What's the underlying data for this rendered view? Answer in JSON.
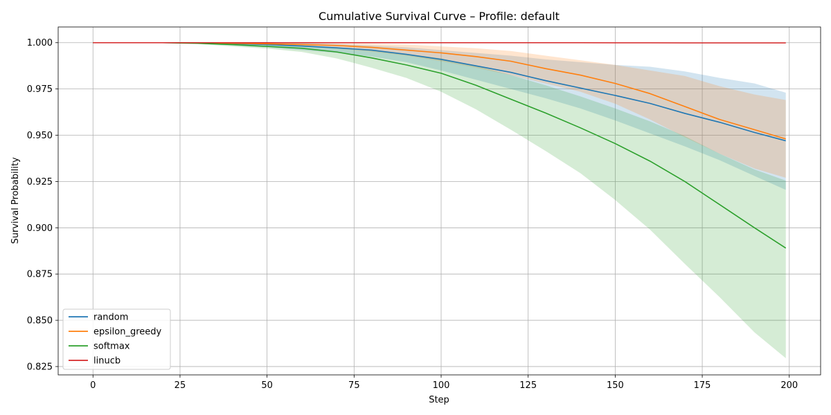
{
  "chart_data": {
    "type": "line",
    "title": "Cumulative Survival Curve – Profile: default",
    "xlabel": "Step",
    "ylabel": "Survival Probability",
    "xlim": [
      -10,
      209
    ],
    "ylim": [
      0.8205,
      1.0085
    ],
    "xticks": [
      0,
      25,
      50,
      75,
      100,
      125,
      150,
      175,
      200
    ],
    "yticks": [
      0.825,
      0.85,
      0.875,
      0.9,
      0.925,
      0.95,
      0.975,
      1.0
    ],
    "ytick_labels": [
      "0.825",
      "0.850",
      "0.875",
      "0.900",
      "0.925",
      "0.950",
      "0.975",
      "1.000"
    ],
    "grid": true,
    "legend_position": "lower-left",
    "x": [
      0,
      10,
      20,
      30,
      40,
      50,
      60,
      70,
      80,
      90,
      100,
      110,
      120,
      130,
      140,
      150,
      160,
      170,
      180,
      190,
      199
    ],
    "series": [
      {
        "name": "random",
        "color": "#1f77b4",
        "values": [
          1.0,
          1.0,
          1.0,
          0.9999,
          0.9995,
          0.999,
          0.9982,
          0.9972,
          0.996,
          0.9937,
          0.991,
          0.9875,
          0.984,
          0.9795,
          0.9755,
          0.9715,
          0.9672,
          0.9618,
          0.957,
          0.9515,
          0.947
        ],
        "upper": [
          1.0,
          1.0,
          1.0,
          1.0,
          1.0,
          1.0,
          0.9998,
          0.9993,
          0.9985,
          0.9975,
          0.996,
          0.9945,
          0.993,
          0.991,
          0.9895,
          0.988,
          0.987,
          0.9845,
          0.981,
          0.978,
          0.973
        ],
        "lower": [
          1.0,
          1.0,
          1.0,
          0.9995,
          0.9985,
          0.9975,
          0.996,
          0.9945,
          0.9925,
          0.9895,
          0.985,
          0.98,
          0.975,
          0.97,
          0.9645,
          0.958,
          0.951,
          0.944,
          0.9365,
          0.928,
          0.9205
        ]
      },
      {
        "name": "epsilon_greedy",
        "color": "#ff7f0e",
        "values": [
          1.0,
          1.0,
          1.0,
          1.0,
          0.9997,
          0.9994,
          0.999,
          0.9985,
          0.9975,
          0.996,
          0.9945,
          0.9925,
          0.99,
          0.986,
          0.9825,
          0.978,
          0.9725,
          0.9655,
          0.9585,
          0.953,
          0.948
        ],
        "upper": [
          1.0,
          1.0,
          1.0,
          1.0,
          1.0,
          1.0,
          0.9998,
          0.9995,
          0.9993,
          0.999,
          0.998,
          0.997,
          0.9955,
          0.993,
          0.9905,
          0.988,
          0.985,
          0.982,
          0.9765,
          0.972,
          0.969
        ],
        "lower": [
          1.0,
          1.0,
          1.0,
          0.9998,
          0.9993,
          0.9988,
          0.998,
          0.9968,
          0.9952,
          0.993,
          0.99,
          0.9865,
          0.9825,
          0.978,
          0.9735,
          0.967,
          0.9585,
          0.949,
          0.94,
          0.932,
          0.927
        ]
      },
      {
        "name": "softmax",
        "color": "#2ca02c",
        "values": [
          1.0,
          1.0,
          1.0,
          0.9997,
          0.999,
          0.998,
          0.997,
          0.995,
          0.9918,
          0.988,
          0.9835,
          0.977,
          0.9695,
          0.962,
          0.954,
          0.9455,
          0.936,
          0.925,
          0.9125,
          0.9,
          0.889
        ],
        "upper": [
          1.0,
          1.0,
          1.0,
          1.0,
          0.9998,
          0.9993,
          0.9985,
          0.9975,
          0.996,
          0.994,
          0.9915,
          0.9875,
          0.9825,
          0.977,
          0.971,
          0.9645,
          0.9575,
          0.9495,
          0.94,
          0.9315,
          0.9255
        ],
        "lower": [
          1.0,
          1.0,
          1.0,
          0.9993,
          0.998,
          0.9968,
          0.995,
          0.9915,
          0.9865,
          0.981,
          0.9735,
          0.964,
          0.953,
          0.9415,
          0.9295,
          0.915,
          0.899,
          0.8805,
          0.8625,
          0.8435,
          0.8295
        ]
      },
      {
        "name": "linucb",
        "color": "#d62728",
        "values": [
          1.0,
          1.0,
          1.0,
          1.0,
          1.0,
          1.0,
          1.0,
          1.0,
          1.0,
          1.0,
          1.0,
          1.0,
          1.0,
          1.0,
          1.0,
          0.99995,
          0.99995,
          0.9999,
          0.9999,
          0.9999,
          0.9999
        ],
        "upper": [
          1.0,
          1.0,
          1.0,
          1.0,
          1.0,
          1.0,
          1.0,
          1.0,
          1.0,
          1.0,
          1.0,
          1.0,
          1.0,
          1.0,
          1.0,
          1.0,
          1.0,
          1.0,
          1.0,
          1.0,
          1.0
        ],
        "lower": [
          1.0,
          1.0,
          1.0,
          1.0,
          1.0,
          1.0,
          1.0,
          1.0,
          1.0,
          1.0,
          0.9999,
          0.9999,
          0.9999,
          0.9999,
          0.9998,
          0.9998,
          0.9998,
          0.9997,
          0.9997,
          0.9997,
          0.9996
        ]
      }
    ]
  }
}
